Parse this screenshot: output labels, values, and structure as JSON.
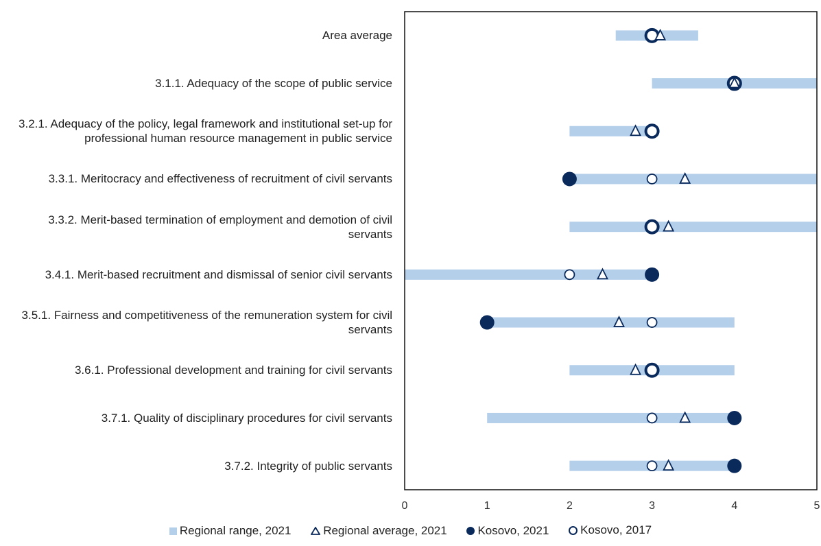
{
  "chart_data": {
    "type": "scatter",
    "orientation": "horizontal",
    "categories": [
      "Area average",
      "3.1.1. Adequacy of the scope of public service",
      "3.2.1. Adequacy of the policy, legal framework and institutional set-up for professional human resource management in public service",
      "3.3.1. Meritocracy and effectiveness of recruitment of civil servants",
      "3.3.2. Merit-based termination of employment and demotion of civil servants",
      "3.4.1. Merit-based recruitment and dismissal of senior civil servants",
      "3.5.1. Fairness and competitiveness of the remuneration system for civil servants",
      "3.6.1. Professional development and training for civil servants",
      "3.7.1. Quality of disciplinary procedures for civil servants",
      "3.7.2. Integrity of public servants"
    ],
    "category_lines": [
      [
        "Area average"
      ],
      [
        "3.1.1. Adequacy of the scope of public service"
      ],
      [
        "3.2.1. Adequacy of the policy, legal framework and institutional set-up for",
        "professional human resource management in public service"
      ],
      [
        "3.3.1. Meritocracy and effectiveness of recruitment of civil servants"
      ],
      [
        "3.3.2. Merit-based termination of employment and demotion of civil",
        "servants"
      ],
      [
        "3.4.1. Merit-based recruitment and dismissal of senior civil servants"
      ],
      [
        "3.5.1. Fairness and competitiveness of the remuneration system for civil",
        "servants"
      ],
      [
        "3.6.1. Professional development and training for civil servants"
      ],
      [
        "3.7.1. Quality of disciplinary procedures for civil servants"
      ],
      [
        "3.7.2. Integrity of public servants"
      ]
    ],
    "series": [
      {
        "name": "Regional range, 2021",
        "kind": "range",
        "values": [
          [
            2.56,
            3.56
          ],
          [
            3,
            5
          ],
          [
            2,
            3
          ],
          [
            2,
            5
          ],
          [
            2,
            5
          ],
          [
            0,
            3
          ],
          [
            1,
            4
          ],
          [
            2,
            4
          ],
          [
            1,
            4
          ],
          [
            2,
            4
          ]
        ]
      },
      {
        "name": "Regional average, 2021",
        "kind": "triangle",
        "values": [
          3.1,
          4,
          2.8,
          3.4,
          3.2,
          2.4,
          2.6,
          2.8,
          3.4,
          3.2
        ]
      },
      {
        "name": "Kosovo, 2021",
        "kind": "filled-circle",
        "values": [
          3.0,
          4,
          3,
          2,
          3,
          3,
          1,
          3,
          4,
          4
        ]
      },
      {
        "name": "Kosovo, 2017",
        "kind": "open-circle",
        "values": [
          3.0,
          4,
          3,
          3,
          3,
          2,
          3,
          3,
          3,
          3
        ]
      }
    ],
    "xlim": [
      0,
      5
    ],
    "xticks": [
      "0",
      "1",
      "2",
      "3",
      "4",
      "5"
    ],
    "legend_position": "bottom",
    "colors": {
      "range": "#b4cfea",
      "marker": "#0b2a5c"
    }
  },
  "legend": {
    "range": "Regional range, 2021",
    "avg": "Regional average, 2021",
    "k21": "Kosovo, 2021",
    "k17": "Kosovo, 2017"
  }
}
